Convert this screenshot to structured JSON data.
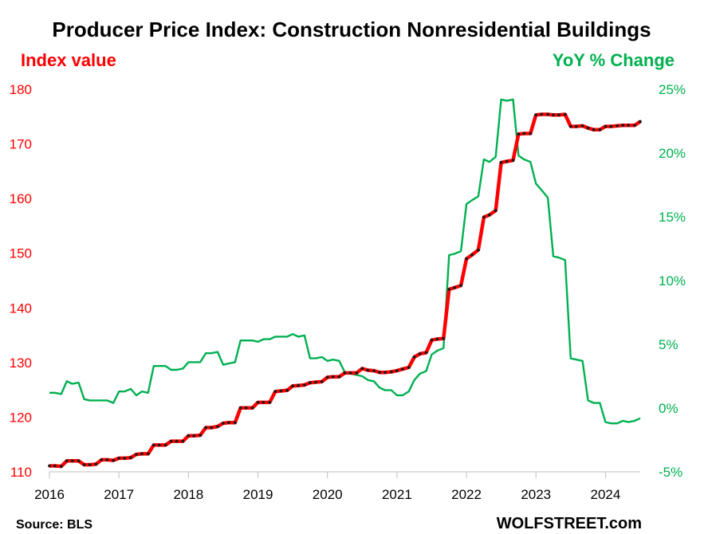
{
  "chart_data": {
    "type": "line",
    "title": "Producer Price Index: Construction Nonresidential Buildings",
    "left_axis_label": "Index value",
    "right_axis_label": "YoY % Change",
    "source": "Source: BLS",
    "brand": "WOLFSTREET.com",
    "colors": {
      "index": "#ff0000",
      "index_dots": "#1a1a1a",
      "yoy": "#00b050",
      "left_axis": "#ff0000",
      "right_axis": "#00b050"
    },
    "x_ticks": [
      "2016",
      "2017",
      "2018",
      "2019",
      "2020",
      "2021",
      "2022",
      "2023",
      "2024"
    ],
    "y_left": {
      "min": 110,
      "max": 180,
      "ticks": [
        "110",
        "120",
        "130",
        "140",
        "150",
        "160",
        "170",
        "180"
      ]
    },
    "y_right": {
      "min": -5,
      "max": 25,
      "ticks": [
        "-5%",
        "0%",
        "5%",
        "10%",
        "15%",
        "20%",
        "25%"
      ]
    },
    "series": [
      {
        "axis": "left",
        "name": "Index value",
        "points": [
          [
            2016.0,
            111.1
          ],
          [
            2016.08,
            111.1
          ],
          [
            2016.17,
            111.0
          ],
          [
            2016.25,
            112.0
          ],
          [
            2016.33,
            112.0
          ],
          [
            2016.42,
            112.0
          ],
          [
            2016.5,
            111.3
          ],
          [
            2016.58,
            111.3
          ],
          [
            2016.67,
            111.4
          ],
          [
            2016.75,
            112.2
          ],
          [
            2016.83,
            112.2
          ],
          [
            2016.92,
            112.1
          ],
          [
            2017.0,
            112.5
          ],
          [
            2017.08,
            112.5
          ],
          [
            2017.17,
            112.6
          ],
          [
            2017.25,
            113.2
          ],
          [
            2017.33,
            113.3
          ],
          [
            2017.42,
            113.3
          ],
          [
            2017.5,
            114.9
          ],
          [
            2017.58,
            114.9
          ],
          [
            2017.67,
            114.9
          ],
          [
            2017.75,
            115.6
          ],
          [
            2017.83,
            115.6
          ],
          [
            2017.92,
            115.6
          ],
          [
            2018.0,
            116.6
          ],
          [
            2018.08,
            116.6
          ],
          [
            2018.17,
            116.7
          ],
          [
            2018.25,
            118.1
          ],
          [
            2018.33,
            118.1
          ],
          [
            2018.42,
            118.3
          ],
          [
            2018.5,
            118.9
          ],
          [
            2018.58,
            119.0
          ],
          [
            2018.67,
            119.0
          ],
          [
            2018.75,
            121.7
          ],
          [
            2018.83,
            121.7
          ],
          [
            2018.92,
            121.7
          ],
          [
            2019.0,
            122.7
          ],
          [
            2019.08,
            122.7
          ],
          [
            2019.17,
            122.7
          ],
          [
            2019.25,
            124.7
          ],
          [
            2019.33,
            124.8
          ],
          [
            2019.42,
            124.9
          ],
          [
            2019.5,
            125.7
          ],
          [
            2019.58,
            125.8
          ],
          [
            2019.67,
            125.9
          ],
          [
            2019.75,
            126.3
          ],
          [
            2019.83,
            126.4
          ],
          [
            2019.92,
            126.5
          ],
          [
            2020.0,
            127.3
          ],
          [
            2020.08,
            127.4
          ],
          [
            2020.17,
            127.4
          ],
          [
            2020.25,
            128.1
          ],
          [
            2020.33,
            128.1
          ],
          [
            2020.42,
            128.1
          ],
          [
            2020.5,
            128.9
          ],
          [
            2020.58,
            128.6
          ],
          [
            2020.67,
            128.5
          ],
          [
            2020.75,
            128.2
          ],
          [
            2020.83,
            128.2
          ],
          [
            2020.92,
            128.3
          ],
          [
            2021.0,
            128.5
          ],
          [
            2021.08,
            128.8
          ],
          [
            2021.17,
            129.1
          ],
          [
            2021.25,
            131.0
          ],
          [
            2021.33,
            131.6
          ],
          [
            2021.42,
            131.8
          ],
          [
            2021.5,
            134.1
          ],
          [
            2021.58,
            134.3
          ],
          [
            2021.67,
            134.4
          ],
          [
            2021.75,
            143.4
          ],
          [
            2021.83,
            143.7
          ],
          [
            2021.92,
            144.1
          ],
          [
            2022.0,
            149.0
          ],
          [
            2022.08,
            149.7
          ],
          [
            2022.17,
            150.6
          ],
          [
            2022.25,
            156.6
          ],
          [
            2022.33,
            157.0
          ],
          [
            2022.42,
            157.8
          ],
          [
            2022.5,
            166.6
          ],
          [
            2022.58,
            166.8
          ],
          [
            2022.67,
            167.0
          ],
          [
            2022.75,
            171.8
          ],
          [
            2022.83,
            171.9
          ],
          [
            2022.92,
            171.9
          ],
          [
            2023.0,
            175.3
          ],
          [
            2023.08,
            175.4
          ],
          [
            2023.17,
            175.4
          ],
          [
            2023.25,
            175.3
          ],
          [
            2023.33,
            175.3
          ],
          [
            2023.42,
            175.4
          ],
          [
            2023.5,
            173.2
          ],
          [
            2023.58,
            173.2
          ],
          [
            2023.67,
            173.3
          ],
          [
            2023.75,
            172.9
          ],
          [
            2023.83,
            172.6
          ],
          [
            2023.92,
            172.6
          ],
          [
            2024.0,
            173.2
          ],
          [
            2024.08,
            173.2
          ],
          [
            2024.17,
            173.3
          ],
          [
            2024.25,
            173.4
          ],
          [
            2024.33,
            173.4
          ],
          [
            2024.42,
            173.4
          ],
          [
            2024.5,
            174.1
          ]
        ]
      },
      {
        "axis": "right",
        "name": "YoY % Change",
        "points": [
          [
            2016.0,
            1.2
          ],
          [
            2016.08,
            1.2
          ],
          [
            2016.17,
            1.1
          ],
          [
            2016.25,
            2.1
          ],
          [
            2016.33,
            1.9
          ],
          [
            2016.42,
            2.0
          ],
          [
            2016.5,
            0.7
          ],
          [
            2016.58,
            0.6
          ],
          [
            2016.67,
            0.6
          ],
          [
            2016.75,
            0.6
          ],
          [
            2016.83,
            0.6
          ],
          [
            2016.92,
            0.4
          ],
          [
            2017.0,
            1.3
          ],
          [
            2017.08,
            1.3
          ],
          [
            2017.17,
            1.5
          ],
          [
            2017.25,
            1.0
          ],
          [
            2017.33,
            1.3
          ],
          [
            2017.42,
            1.2
          ],
          [
            2017.5,
            3.3
          ],
          [
            2017.58,
            3.3
          ],
          [
            2017.67,
            3.3
          ],
          [
            2017.75,
            3.0
          ],
          [
            2017.83,
            3.0
          ],
          [
            2017.92,
            3.1
          ],
          [
            2018.0,
            3.6
          ],
          [
            2018.08,
            3.6
          ],
          [
            2018.17,
            3.6
          ],
          [
            2018.25,
            4.3
          ],
          [
            2018.33,
            4.3
          ],
          [
            2018.42,
            4.4
          ],
          [
            2018.5,
            3.4
          ],
          [
            2018.58,
            3.5
          ],
          [
            2018.67,
            3.6
          ],
          [
            2018.75,
            5.3
          ],
          [
            2018.83,
            5.3
          ],
          [
            2018.92,
            5.3
          ],
          [
            2019.0,
            5.2
          ],
          [
            2019.08,
            5.4
          ],
          [
            2019.17,
            5.4
          ],
          [
            2019.25,
            5.6
          ],
          [
            2019.33,
            5.6
          ],
          [
            2019.42,
            5.6
          ],
          [
            2019.5,
            5.8
          ],
          [
            2019.58,
            5.6
          ],
          [
            2019.67,
            5.7
          ],
          [
            2019.75,
            3.9
          ],
          [
            2019.83,
            3.9
          ],
          [
            2019.92,
            4.0
          ],
          [
            2020.0,
            3.7
          ],
          [
            2020.08,
            3.8
          ],
          [
            2020.17,
            3.7
          ],
          [
            2020.25,
            2.8
          ],
          [
            2020.33,
            2.7
          ],
          [
            2020.42,
            2.6
          ],
          [
            2020.5,
            2.5
          ],
          [
            2020.58,
            2.2
          ],
          [
            2020.67,
            2.1
          ],
          [
            2020.75,
            1.6
          ],
          [
            2020.83,
            1.4
          ],
          [
            2020.92,
            1.4
          ],
          [
            2021.0,
            1.0
          ],
          [
            2021.08,
            1.0
          ],
          [
            2021.17,
            1.3
          ],
          [
            2021.25,
            2.2
          ],
          [
            2021.33,
            2.7
          ],
          [
            2021.42,
            2.9
          ],
          [
            2021.5,
            4.2
          ],
          [
            2021.58,
            4.5
          ],
          [
            2021.67,
            4.7
          ],
          [
            2021.75,
            12.0
          ],
          [
            2021.83,
            12.1
          ],
          [
            2021.92,
            12.3
          ],
          [
            2022.0,
            16.0
          ],
          [
            2022.08,
            16.3
          ],
          [
            2022.17,
            16.6
          ],
          [
            2022.25,
            19.5
          ],
          [
            2022.33,
            19.3
          ],
          [
            2022.42,
            19.7
          ],
          [
            2022.5,
            24.2
          ],
          [
            2022.58,
            24.1
          ],
          [
            2022.67,
            24.2
          ],
          [
            2022.75,
            19.8
          ],
          [
            2022.83,
            19.5
          ],
          [
            2022.92,
            19.3
          ],
          [
            2023.0,
            17.6
          ],
          [
            2023.08,
            17.1
          ],
          [
            2023.17,
            16.5
          ],
          [
            2023.25,
            11.9
          ],
          [
            2023.33,
            11.8
          ],
          [
            2023.42,
            11.6
          ],
          [
            2023.5,
            3.9
          ],
          [
            2023.58,
            3.8
          ],
          [
            2023.67,
            3.7
          ],
          [
            2023.75,
            0.6
          ],
          [
            2023.83,
            0.4
          ],
          [
            2023.92,
            0.4
          ],
          [
            2024.0,
            -1.1
          ],
          [
            2024.08,
            -1.2
          ],
          [
            2024.17,
            -1.2
          ],
          [
            2024.25,
            -1.0
          ],
          [
            2024.33,
            -1.1
          ],
          [
            2024.42,
            -1.0
          ],
          [
            2024.5,
            -0.8
          ]
        ]
      }
    ]
  }
}
